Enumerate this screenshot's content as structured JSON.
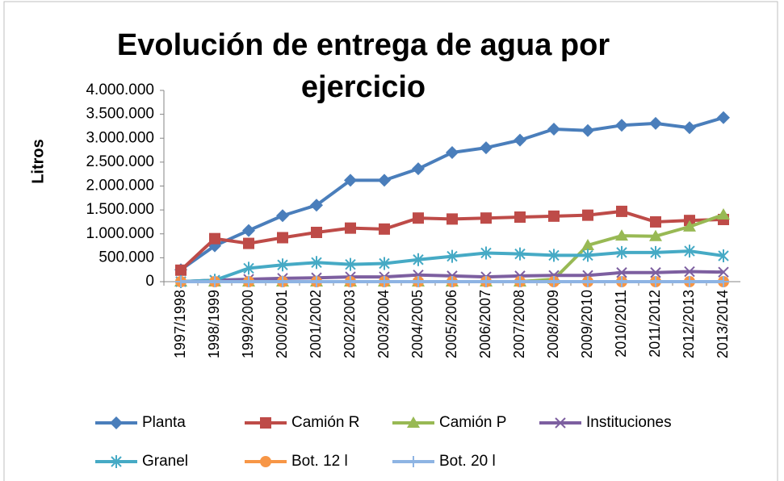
{
  "chart_data": {
    "type": "line",
    "title": "Evolución de entrega de agua por ejercicio",
    "y_label": "Litros",
    "categories": [
      "1997/1998",
      "1998/1999",
      "1999/2000",
      "2000/2001",
      "2001/2002",
      "2002/2003",
      "2003/2004",
      "2004/2005",
      "2005/2006",
      "2006/2007",
      "2007/2008",
      "2008/2009",
      "2009/2010",
      "2010/2011",
      "2011/2012",
      "2012/2013",
      "2013/2014"
    ],
    "ylim": [
      0,
      4000000
    ],
    "yticks": [
      0,
      {
        "value": 500000,
        "label": "500.000"
      },
      {
        "value": 1000000,
        "label": "1.000.000"
      },
      {
        "value": 1500000,
        "label": "1.500.000"
      },
      {
        "value": 2000000,
        "label": "2.000.000"
      },
      {
        "value": 2500000,
        "label": "2.500.000"
      },
      {
        "value": 3000000,
        "label": "3.000.000"
      },
      {
        "value": 3500000,
        "label": "3.500.000"
      },
      {
        "value": 4000000,
        "label": "4.000.000"
      }
    ],
    "grid": false,
    "legend": "bottom",
    "series": [
      {
        "name": "Planta",
        "color": "#4a7ebb",
        "marker": "diamond",
        "values": [
          250000,
          750000,
          1070000,
          1380000,
          1600000,
          2120000,
          2120000,
          2360000,
          2700000,
          2800000,
          2960000,
          3190000,
          3160000,
          3270000,
          3310000,
          3220000,
          3430000
        ]
      },
      {
        "name": "Camión R",
        "color": "#be4b48",
        "marker": "square",
        "values": [
          240000,
          900000,
          800000,
          920000,
          1030000,
          1120000,
          1100000,
          1330000,
          1310000,
          1330000,
          1350000,
          1370000,
          1390000,
          1470000,
          1250000,
          1280000,
          1300000
        ]
      },
      {
        "name": "Camión P",
        "color": "#98b954",
        "marker": "triangle",
        "values": [
          0,
          0,
          0,
          0,
          0,
          0,
          0,
          0,
          0,
          0,
          0,
          50000,
          760000,
          960000,
          950000,
          1150000,
          1400000
        ]
      },
      {
        "name": "Instituciones",
        "color": "#7d5fa0",
        "marker": "x",
        "values": [
          0,
          30000,
          50000,
          70000,
          80000,
          100000,
          100000,
          140000,
          120000,
          100000,
          120000,
          130000,
          130000,
          190000,
          190000,
          210000,
          200000
        ]
      },
      {
        "name": "Granel",
        "color": "#46aac5",
        "marker": "star",
        "values": [
          0,
          30000,
          280000,
          350000,
          400000,
          360000,
          380000,
          460000,
          530000,
          600000,
          580000,
          550000,
          550000,
          610000,
          610000,
          640000,
          540000
        ]
      },
      {
        "name": "Bot. 12 l",
        "color": "#f79646",
        "marker": "circle",
        "values": [
          0,
          0,
          0,
          0,
          0,
          0,
          0,
          0,
          0,
          0,
          0,
          0,
          0,
          0,
          0,
          0,
          0
        ]
      },
      {
        "name": "Bot. 20 l",
        "color": "#8eb4e3",
        "marker": "plus",
        "values": [
          0,
          0,
          0,
          0,
          0,
          0,
          0,
          0,
          0,
          0,
          0,
          0,
          0,
          0,
          0,
          0,
          0
        ]
      }
    ]
  }
}
